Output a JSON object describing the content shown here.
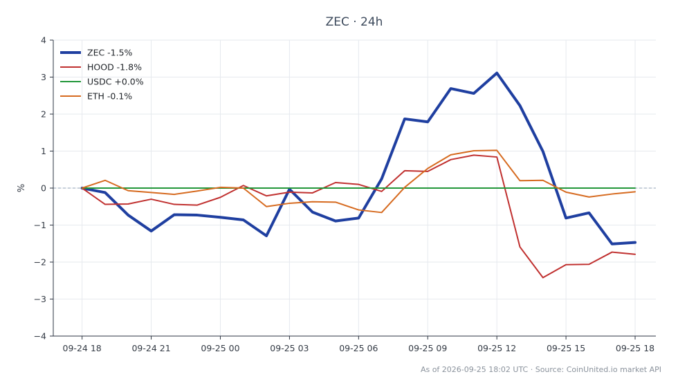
{
  "chart_data": {
    "type": "line",
    "title": "ZEC · 24h",
    "xlabel": "",
    "ylabel": "%",
    "ylim": [
      -4,
      4
    ],
    "yticks": [
      4,
      3,
      2,
      1,
      0,
      -1,
      -2,
      -3,
      -4
    ],
    "ytick_labels": [
      "4",
      "3",
      "2",
      "1",
      "0",
      "−1",
      "−2",
      "−3",
      "−4"
    ],
    "xlim": [
      -1.25,
      24.9
    ],
    "xticks": [
      0,
      3,
      6,
      9,
      12,
      15,
      18,
      21,
      24
    ],
    "xtick_labels": [
      "09-24 18",
      "09-24 21",
      "09-25 00",
      "09-25 03",
      "09-25 06",
      "09-25 09",
      "09-25 12",
      "09-25 15",
      "09-25 18"
    ],
    "x": [
      0,
      1,
      2,
      3,
      4,
      5,
      6,
      7,
      8,
      9,
      10,
      11,
      12,
      13,
      14,
      15,
      16,
      17,
      18,
      19,
      20,
      21,
      22,
      23,
      24
    ],
    "grid": true,
    "zero_line": true,
    "legend_position": "top-left",
    "series": [
      {
        "name": "ZEC -1.5%",
        "color": "#1f3fa0",
        "width": 4,
        "values": [
          0.0,
          -0.12,
          -0.73,
          -1.16,
          -0.72,
          -0.73,
          -0.79,
          -0.86,
          -1.29,
          -0.03,
          -0.65,
          -0.89,
          -0.81,
          0.25,
          1.87,
          1.79,
          2.69,
          2.56,
          3.11,
          2.23,
          0.99,
          -0.81,
          -0.67,
          -1.51,
          -1.47
        ]
      },
      {
        "name": "HOOD -1.8%",
        "color": "#c0302f",
        "width": 2,
        "values": [
          0.0,
          -0.44,
          -0.43,
          -0.3,
          -0.44,
          -0.46,
          -0.25,
          0.07,
          -0.21,
          -0.11,
          -0.13,
          0.15,
          0.1,
          -0.09,
          0.47,
          0.45,
          0.77,
          0.89,
          0.84,
          -1.59,
          -2.42,
          -2.07,
          -2.06,
          -1.73,
          -1.79
        ]
      },
      {
        "name": "USDC +0.0%",
        "color": "#22963a",
        "width": 2,
        "values": [
          0.0,
          0.0,
          0.0,
          0.0,
          0.0,
          0.0,
          0.0,
          0.0,
          0.0,
          0.0,
          0.0,
          0.0,
          0.0,
          0.0,
          0.0,
          0.0,
          0.0,
          0.0,
          0.0,
          0.0,
          0.0,
          0.0,
          0.0,
          0.0,
          0.0
        ]
      },
      {
        "name": "ETH -0.1%",
        "color": "#d66a1f",
        "width": 2,
        "values": [
          0.0,
          0.21,
          -0.07,
          -0.12,
          -0.17,
          -0.08,
          0.02,
          0.0,
          -0.5,
          -0.41,
          -0.37,
          -0.38,
          -0.59,
          -0.66,
          0.02,
          0.53,
          0.9,
          1.01,
          1.02,
          0.2,
          0.21,
          -0.11,
          -0.24,
          -0.16,
          -0.1
        ]
      }
    ],
    "footer": "As of 2026-09-25 18:02 UTC · Source: CoinUnited.io market API"
  }
}
